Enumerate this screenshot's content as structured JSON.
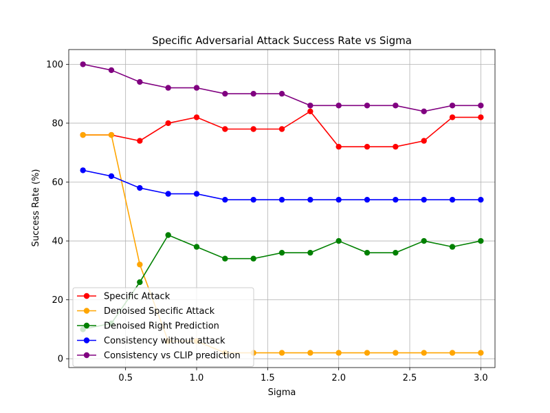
{
  "chart_data": {
    "type": "line",
    "title": "Specific Adversarial Attack Success Rate vs Sigma",
    "xlabel": "Sigma",
    "ylabel": "Success Rate (%)",
    "xlim": [
      0.1,
      3.1
    ],
    "ylim": [
      -3,
      105
    ],
    "xticks": [
      0.5,
      1.0,
      1.5,
      2.0,
      2.5,
      3.0
    ],
    "xtick_labels": [
      "0.5",
      "1.0",
      "1.5",
      "2.0",
      "2.5",
      "3.0"
    ],
    "yticks": [
      0,
      20,
      40,
      60,
      80,
      100
    ],
    "ytick_labels": [
      "0",
      "20",
      "40",
      "60",
      "80",
      "100"
    ],
    "grid": true,
    "legend_position": "lower-left",
    "x": [
      0.2,
      0.4,
      0.6,
      0.8,
      1.0,
      1.2,
      1.4,
      1.6,
      1.8,
      2.0,
      2.2,
      2.4,
      2.6,
      2.8,
      3.0
    ],
    "series": [
      {
        "name": "Specific Attack",
        "color": "#ff0000",
        "values": [
          76,
          76,
          74,
          80,
          82,
          78,
          78,
          78,
          84,
          72,
          72,
          72,
          74,
          82,
          82
        ]
      },
      {
        "name": "Denoised Specific Attack",
        "color": "#ffa500",
        "values": [
          76,
          76,
          32,
          6,
          6,
          2,
          2,
          2,
          2,
          2,
          2,
          2,
          2,
          2,
          2
        ]
      },
      {
        "name": "Denoised Right Prediction",
        "color": "#008000",
        "values": [
          10,
          12,
          26,
          42,
          38,
          34,
          34,
          36,
          36,
          40,
          36,
          36,
          40,
          38,
          40
        ]
      },
      {
        "name": "Consistency without attack",
        "color": "#0000ff",
        "values": [
          64,
          62,
          58,
          56,
          56,
          54,
          54,
          54,
          54,
          54,
          54,
          54,
          54,
          54,
          54
        ]
      },
      {
        "name": "Consistency vs CLIP prediction",
        "color": "#800080",
        "values": [
          100,
          98,
          94,
          92,
          92,
          90,
          90,
          90,
          86,
          86,
          86,
          86,
          84,
          86,
          86
        ]
      }
    ]
  }
}
